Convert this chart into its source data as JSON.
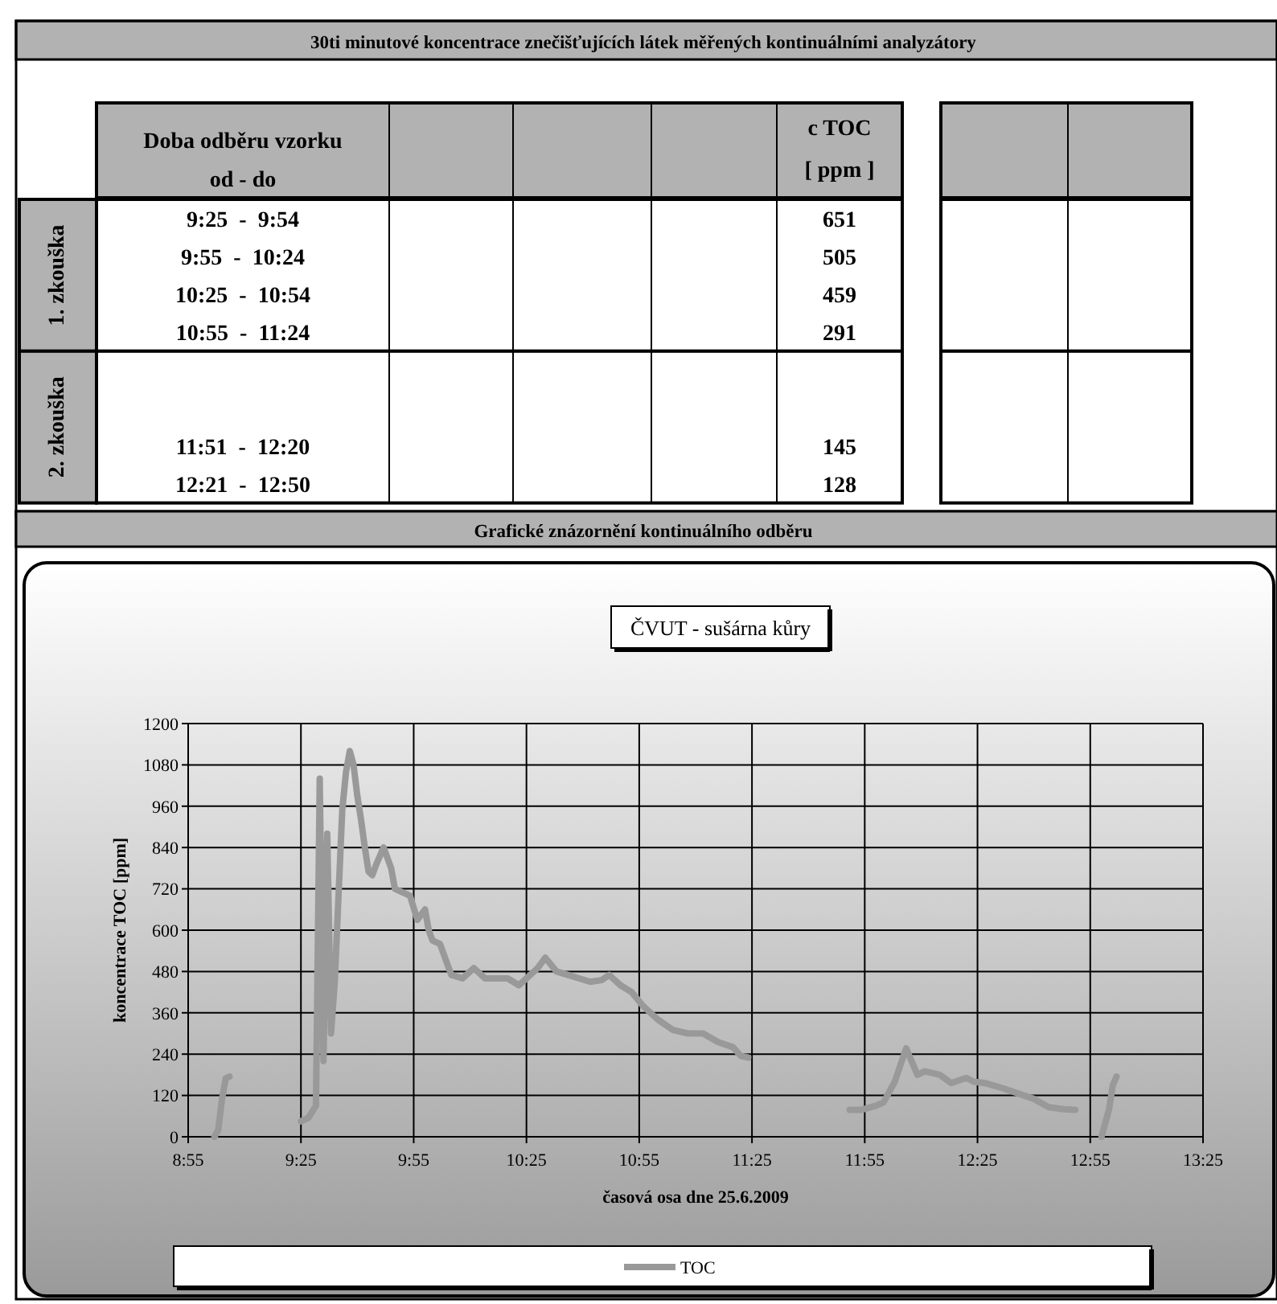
{
  "chart_data": [
    {
      "type": "other",
      "title": "30ti minutové koncentrace znečišťujících látek měřených kontinuálními analyzátory",
      "xlabel": "Doba odběru vzorku\nod - do",
      "ylabel": "c TOC\n[ ppm ]",
      "categories": [
        "9:25  -  9:54",
        "9:55  -  10:24",
        "10:25  -  10:54",
        "10:55  -  11:24",
        null,
        null,
        "11:51  -  12:20",
        "12:21  -  12:50"
      ],
      "series": [
        {
          "name": "1. zkouška",
          "values": [
            651,
            505,
            459,
            291,
            null,
            null,
            null,
            null
          ]
        },
        {
          "name": "2. zkouška",
          "values": [
            null,
            null,
            null,
            null,
            null,
            null,
            145,
            128
          ]
        }
      ],
      "data_labels": true
    },
    {
      "type": "line",
      "title": "ČVUT - sušárna kůry",
      "subtitle": "Grafické znázornění kontinuálního odběru",
      "xlabel": "časová osa dne 25.6.2009",
      "ylabel": "koncentrace TOC [ppm]",
      "x": [
        "2009-06-25T09:02",
        "2009-06-25T09:03",
        "2009-06-25T09:04",
        "2009-06-25T09:05",
        "2009-06-25T09:06",
        "2009-06-25T09:15",
        "2009-06-25T09:25",
        "2009-06-25T09:27",
        "2009-06-25T09:29",
        "2009-06-25T09:30",
        "2009-06-25T09:31",
        "2009-06-25T09:32",
        "2009-06-25T09:33",
        "2009-06-25T09:34",
        "2009-06-25T09:35",
        "2009-06-25T09:36",
        "2009-06-25T09:37",
        "2009-06-25T09:38",
        "2009-06-25T09:39",
        "2009-06-25T09:40",
        "2009-06-25T09:41",
        "2009-06-25T09:42",
        "2009-06-25T09:43",
        "2009-06-25T09:44",
        "2009-06-25T09:45",
        "2009-06-25T09:47",
        "2009-06-25T09:49",
        "2009-06-25T09:50",
        "2009-06-25T09:52",
        "2009-06-25T09:54",
        "2009-06-25T09:56",
        "2009-06-25T09:58",
        "2009-06-25T09:59",
        "2009-06-25T10:00",
        "2009-06-25T10:02",
        "2009-06-25T10:04",
        "2009-06-25T10:05",
        "2009-06-25T10:08",
        "2009-06-25T10:11",
        "2009-06-25T10:14",
        "2009-06-25T10:18",
        "2009-06-25T10:20",
        "2009-06-25T10:23",
        "2009-06-25T10:25",
        "2009-06-25T10:28",
        "2009-06-25T10:30",
        "2009-06-25T10:33",
        "2009-06-25T10:36",
        "2009-06-25T10:39",
        "2009-06-25T10:42",
        "2009-06-25T10:45",
        "2009-06-25T10:47",
        "2009-06-25T10:50",
        "2009-06-25T10:53",
        "2009-06-25T10:56",
        "2009-06-25T11:00",
        "2009-06-25T11:04",
        "2009-06-25T11:08",
        "2009-06-25T11:12",
        "2009-06-25T11:16",
        "2009-06-25T11:20",
        "2009-06-25T11:22",
        "2009-06-25T11:24",
        "2009-06-25T11:38",
        "2009-06-25T11:51",
        "2009-06-25T11:54",
        "2009-06-25T11:58",
        "2009-06-25T12:00",
        "2009-06-25T12:03",
        "2009-06-25T12:06",
        "2009-06-25T12:09",
        "2009-06-25T12:11",
        "2009-06-25T12:15",
        "2009-06-25T12:18",
        "2009-06-25T12:22",
        "2009-06-25T12:24",
        "2009-06-25T12:27",
        "2009-06-25T12:32",
        "2009-06-25T12:36",
        "2009-06-25T12:40",
        "2009-06-25T12:44",
        "2009-06-25T12:48",
        "2009-06-25T12:51",
        "2009-06-25T12:55",
        "2009-06-25T12:58",
        "2009-06-25T12:59",
        "2009-06-25T13:00",
        "2009-06-25T13:01",
        "2009-06-25T13:02"
      ],
      "series": [
        {
          "name": "TOC",
          "color": "#999999",
          "values": [
            0,
            20,
            110,
            170,
            175,
            null,
            45,
            55,
            90,
            1040,
            220,
            880,
            300,
            450,
            700,
            950,
            1060,
            1120,
            1080,
            990,
            920,
            840,
            770,
            760,
            790,
            840,
            780,
            720,
            710,
            700,
            630,
            660,
            600,
            570,
            560,
            500,
            470,
            460,
            490,
            460,
            460,
            460,
            440,
            460,
            490,
            520,
            480,
            470,
            460,
            450,
            455,
            470,
            440,
            420,
            380,
            340,
            310,
            300,
            300,
            275,
            260,
            235,
            230,
            null,
            78,
            78,
            90,
            100,
            160,
            257,
            180,
            190,
            180,
            156,
            171,
            160,
            156,
            140,
            125,
            110,
            86,
            80,
            78,
            null,
            0,
            40,
            80,
            150,
            175
          ]
        }
      ],
      "xlim": [
        "2009-06-25T08:55",
        "2009-06-25T13:25"
      ],
      "xticks": [
        {
          "value": "2009-06-25T08:55",
          "label": "8:55"
        },
        {
          "value": "2009-06-25T09:25",
          "label": "9:25"
        },
        {
          "value": "2009-06-25T09:55",
          "label": "9:55"
        },
        {
          "value": "2009-06-25T10:25",
          "label": "10:25"
        },
        {
          "value": "2009-06-25T10:55",
          "label": "10:55"
        },
        {
          "value": "2009-06-25T11:25",
          "label": "11:25"
        },
        {
          "value": "2009-06-25T11:55",
          "label": "11:55"
        },
        {
          "value": "2009-06-25T12:25",
          "label": "12:25"
        },
        {
          "value": "2009-06-25T12:55",
          "label": "12:55"
        },
        {
          "value": "2009-06-25T13:25",
          "label": "13:25"
        }
      ],
      "ylim": [
        0,
        1200
      ],
      "yticks": [
        0,
        120,
        240,
        360,
        480,
        600,
        720,
        840,
        960,
        1080,
        1200
      ],
      "grid": true,
      "legend": "bottom"
    }
  ]
}
